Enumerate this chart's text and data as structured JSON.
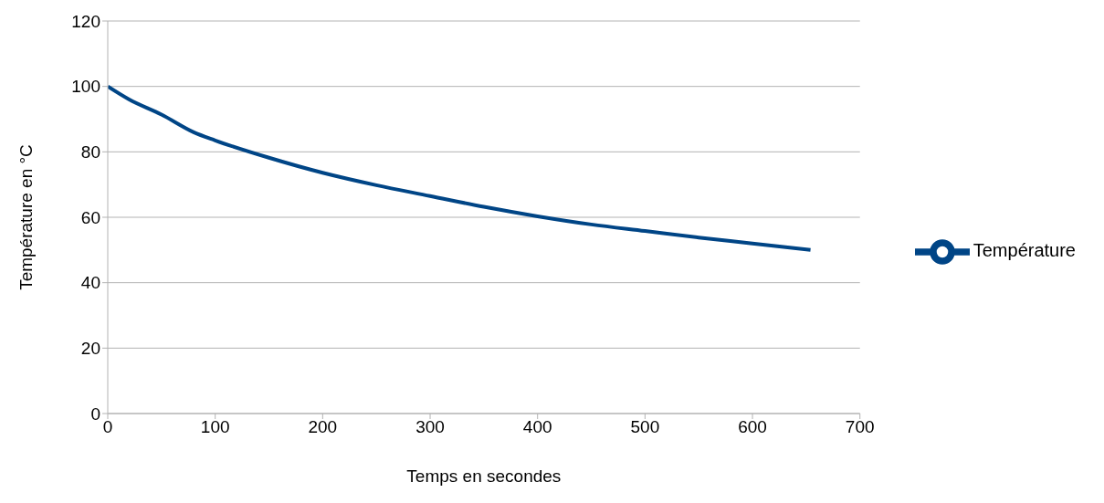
{
  "chart_data": {
    "type": "line",
    "xlabel": "Temps en secondes",
    "ylabel": "Température en °C",
    "xlim": [
      0,
      700
    ],
    "xticks": [
      0,
      100,
      200,
      300,
      400,
      500,
      600,
      700
    ],
    "ylim": [
      0,
      120
    ],
    "yticks": [
      0,
      20,
      40,
      60,
      80,
      100,
      120
    ],
    "grid": "y",
    "legend": "right",
    "marker": "none",
    "line_style": "solid",
    "series": [
      {
        "name": "Température",
        "color": "#004586",
        "x": [
          0,
          20,
          50,
          80,
          100,
          150,
          200,
          250,
          300,
          350,
          400,
          450,
          500,
          550,
          600,
          654
        ],
        "values": [
          100,
          96,
          91.4,
          86,
          83.5,
          78.2,
          73.6,
          69.8,
          66.5,
          63.2,
          60.3,
          57.8,
          55.8,
          53.8,
          52,
          50
        ]
      }
    ]
  }
}
